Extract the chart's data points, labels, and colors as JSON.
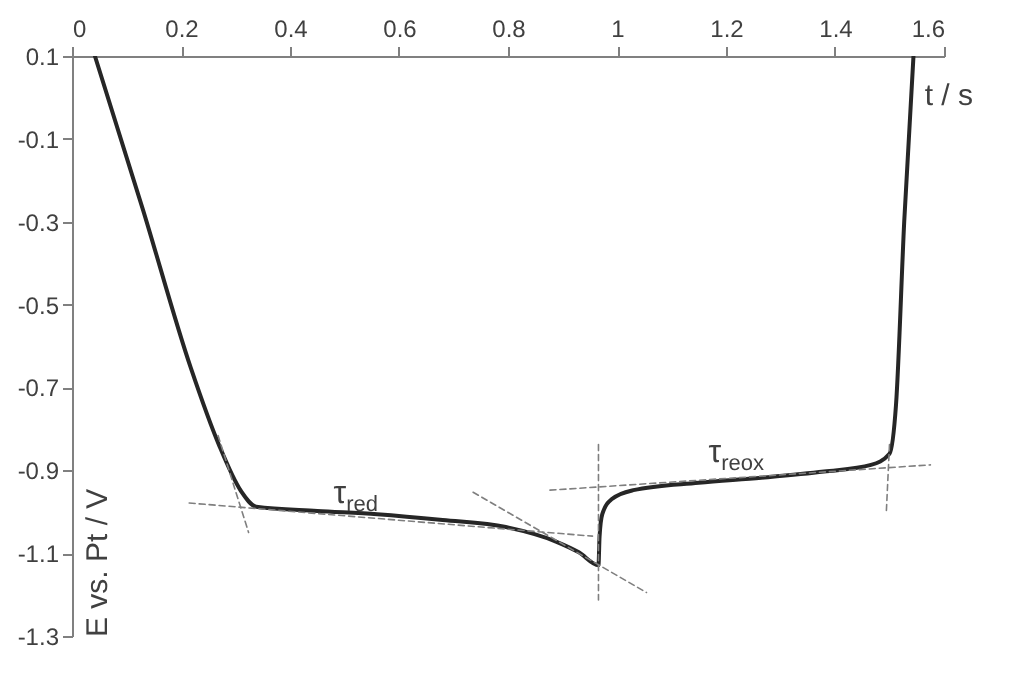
{
  "chart_data": {
    "type": "line",
    "xlabel": "t / s",
    "ylabel": "E vs. Pt / V",
    "xlim": [
      0,
      1.6
    ],
    "xticks": [
      0,
      0.2,
      0.4,
      0.6,
      0.8,
      1,
      1.2,
      1.4,
      1.6
    ],
    "ylim": [
      -1.3,
      0.1
    ],
    "yticks": [
      0.1,
      -0.1,
      -0.3,
      -0.5,
      -0.7,
      -0.9,
      -1.1,
      -1.3
    ],
    "grid": false,
    "marker": "none",
    "series": [
      {
        "color": "#262626",
        "line_style": "solid",
        "x": [
          0.042,
          0.13,
          0.218,
          0.27,
          0.31,
          0.338,
          0.45,
          0.56,
          0.68,
          0.796,
          0.888,
          0.93,
          0.966,
          0.968,
          0.973,
          0.99,
          1.03,
          1.15,
          1.265,
          1.38,
          1.466,
          1.5,
          1.512,
          1.527,
          1.544
        ],
        "values": [
          0.1,
          -0.27,
          -0.653,
          -0.84,
          -0.95,
          -0.988,
          -0.998,
          -1.006,
          -1.02,
          -1.037,
          -1.072,
          -1.098,
          -1.129,
          -1.06,
          -1.006,
          -0.97,
          -0.948,
          -0.93,
          -0.918,
          -0.903,
          -0.887,
          -0.86,
          -0.741,
          -0.3,
          0.1
        ]
      },
      {
        "color": "#7f7f7f",
        "line_style": "dashed",
        "x": [
          0.268,
          0.324
        ],
        "values": [
          -0.816,
          -1.05
        ]
      },
      {
        "color": "#7f7f7f",
        "line_style": "dashed",
        "x": [
          0.215,
          0.955
        ],
        "values": [
          -0.979,
          -1.059
        ]
      },
      {
        "color": "#7f7f7f",
        "line_style": "dashed",
        "x": [
          0.736,
          1.054
        ],
        "values": [
          -0.953,
          -1.195
        ]
      },
      {
        "color": "#7f7f7f",
        "line_style": "dashed",
        "x": [
          0.966,
          0.966
        ],
        "values": [
          -0.838,
          -1.213
        ]
      },
      {
        "color": "#7f7f7f",
        "line_style": "dashed",
        "x": [
          0.877,
          1.575
        ],
        "values": [
          -0.948,
          -0.887
        ]
      },
      {
        "color": "#7f7f7f",
        "line_style": "dashed",
        "x": [
          1.5,
          1.494
        ],
        "values": [
          -0.838,
          -1.006
        ]
      }
    ],
    "annotations": [
      "τ$_{red}$",
      "τ$_{reox}$"
    ]
  }
}
